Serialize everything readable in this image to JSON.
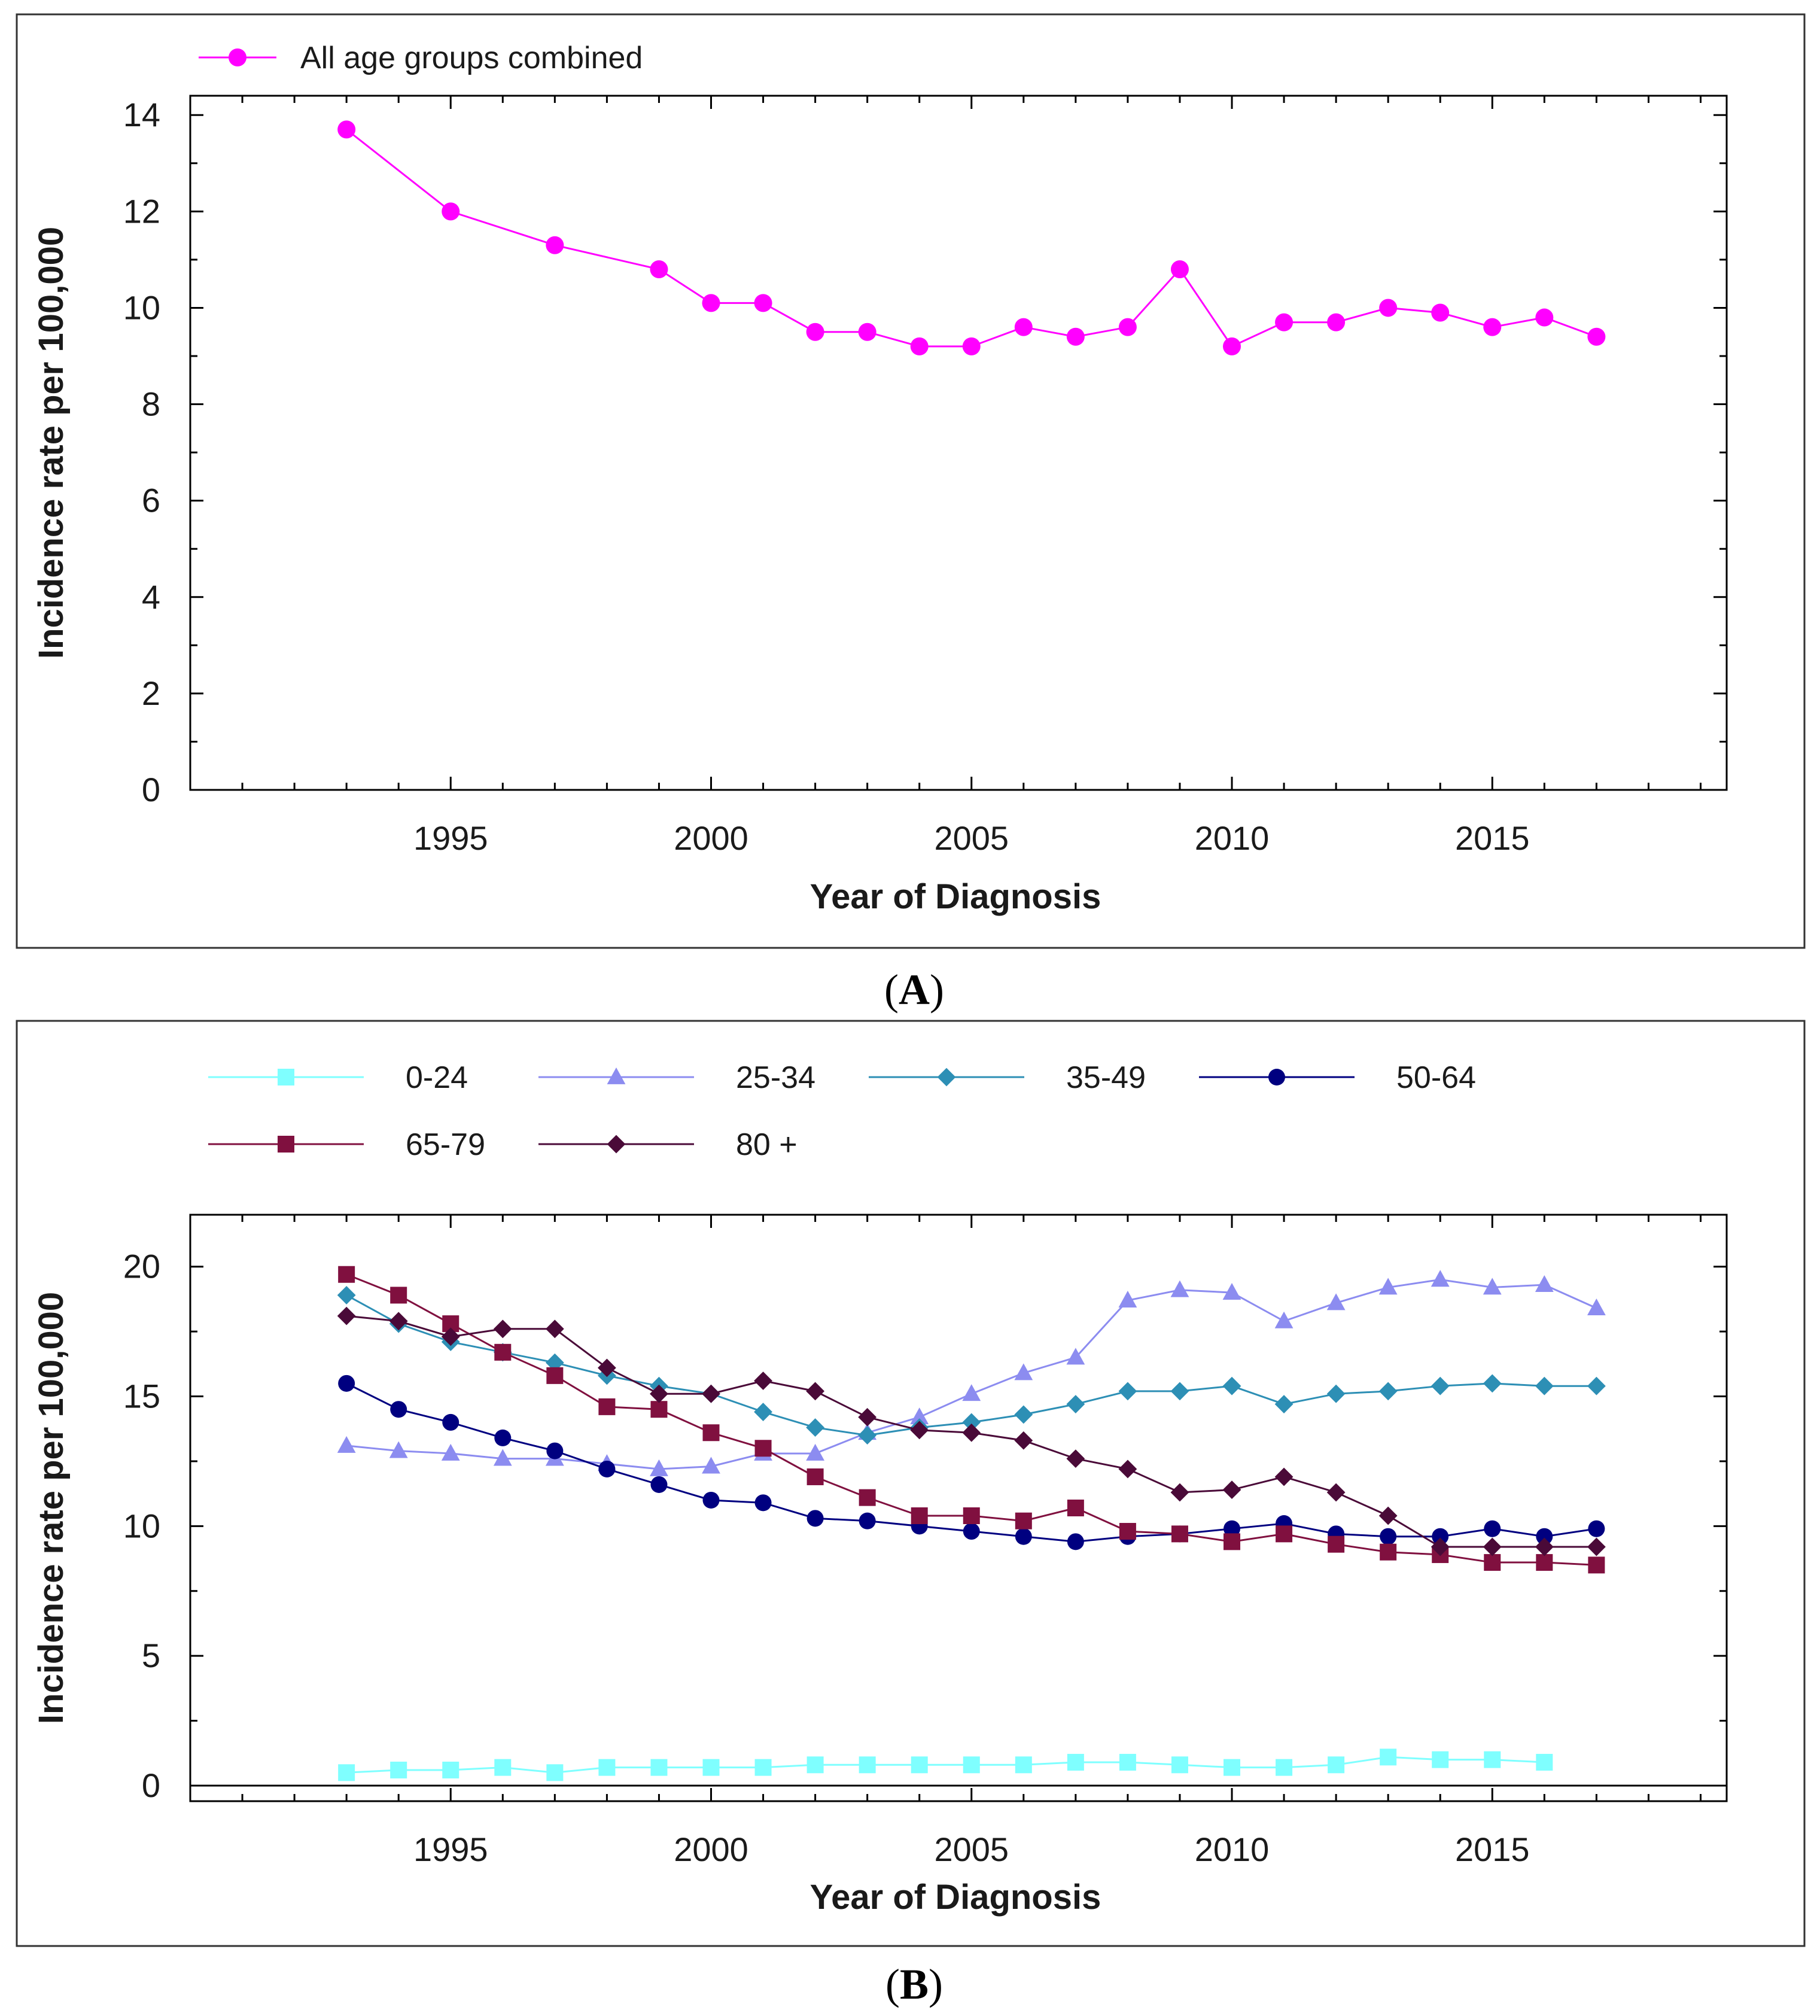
{
  "colors": {
    "frame": "#333333",
    "axis": "#000000",
    "text": "#1a1a1a"
  },
  "chart_data": [
    {
      "panel_label": "A",
      "type": "line",
      "title": "",
      "xlabel": "Year of Diagnosis",
      "ylabel": "Incidence rate per 100,000",
      "xlim": [
        1990,
        2019.5
      ],
      "ylim": [
        0,
        14.4
      ],
      "xticks": [
        1995,
        2000,
        2005,
        2010,
        2015
      ],
      "yticks": [
        0,
        2,
        4,
        6,
        8,
        10,
        12,
        14
      ],
      "legend_position": "top-left",
      "series": [
        {
          "name": "All age groups combined",
          "color": "#ff00ff",
          "marker": "circle",
          "x": [
            1993,
            1995,
            1997,
            1999,
            2000,
            2001,
            2002,
            2003,
            2004,
            2005,
            2006,
            2007,
            2008,
            2009,
            2010,
            2011,
            2012,
            2013,
            2014,
            2015,
            2016,
            2017
          ],
          "y": [
            13.7,
            12.0,
            11.3,
            10.8,
            10.1,
            10.1,
            9.5,
            9.5,
            9.2,
            9.2,
            9.6,
            9.4,
            9.6,
            10.8,
            9.2,
            9.7,
            9.7,
            10.0,
            9.9,
            9.6,
            9.8,
            9.4
          ]
        }
      ]
    },
    {
      "panel_label": "B",
      "type": "line",
      "title": "",
      "xlabel": "Year of Diagnosis",
      "ylabel": "Incidence rate per 100,000",
      "xlim": [
        1990,
        2019.5
      ],
      "ylim": [
        -0.6,
        22
      ],
      "xticks": [
        1995,
        2000,
        2005,
        2010,
        2015
      ],
      "yticks": [
        0,
        5,
        10,
        15,
        20
      ],
      "legend_position": "top",
      "series": [
        {
          "name": "0-24",
          "color": "#7fffff",
          "marker": "square",
          "x": [
            1993,
            1994,
            1995,
            1996,
            1997,
            1998,
            1999,
            2000,
            2001,
            2002,
            2003,
            2004,
            2005,
            2006,
            2007,
            2008,
            2009,
            2010,
            2011,
            2012,
            2013,
            2014,
            2015,
            2016
          ],
          "y": [
            0.5,
            0.6,
            0.6,
            0.7,
            0.5,
            0.7,
            0.7,
            0.7,
            0.7,
            0.8,
            0.8,
            0.8,
            0.8,
            0.8,
            0.9,
            0.9,
            0.8,
            0.7,
            0.7,
            0.8,
            1.1,
            1.0,
            1.0,
            0.9
          ]
        },
        {
          "name": "25-34",
          "color": "#8c8cf0",
          "marker": "triangle",
          "x": [
            1993,
            1994,
            1995,
            1996,
            1997,
            1998,
            1999,
            2000,
            2001,
            2002,
            2003,
            2004,
            2005,
            2006,
            2007,
            2008,
            2009,
            2010,
            2011,
            2012,
            2013,
            2014,
            2015,
            2016,
            2017
          ],
          "y": [
            13.1,
            12.9,
            12.8,
            12.6,
            12.6,
            12.4,
            12.2,
            12.3,
            12.8,
            12.8,
            13.6,
            14.2,
            15.1,
            15.9,
            16.5,
            18.7,
            19.1,
            19.0,
            17.9,
            18.6,
            19.2,
            19.5,
            19.2,
            19.3,
            18.4
          ]
        },
        {
          "name": "35-49",
          "color": "#2d8fb5",
          "marker": "diamond",
          "x": [
            1993,
            1994,
            1995,
            1996,
            1997,
            1998,
            1999,
            2000,
            2001,
            2002,
            2003,
            2004,
            2005,
            2006,
            2007,
            2008,
            2009,
            2010,
            2011,
            2012,
            2013,
            2014,
            2015,
            2016,
            2017
          ],
          "y": [
            18.9,
            17.8,
            17.1,
            16.7,
            16.3,
            15.8,
            15.4,
            15.1,
            14.4,
            13.8,
            13.5,
            13.8,
            14.0,
            14.3,
            14.7,
            15.2,
            15.2,
            15.4,
            14.7,
            15.1,
            15.2,
            15.4,
            15.5,
            15.4,
            15.4
          ]
        },
        {
          "name": "50-64",
          "color": "#000080",
          "marker": "circle",
          "x": [
            1993,
            1994,
            1995,
            1996,
            1997,
            1998,
            1999,
            2000,
            2001,
            2002,
            2003,
            2004,
            2005,
            2006,
            2007,
            2008,
            2009,
            2010,
            2011,
            2012,
            2013,
            2014,
            2015,
            2016,
            2017
          ],
          "y": [
            15.5,
            14.5,
            14.0,
            13.4,
            12.9,
            12.2,
            11.6,
            11.0,
            10.9,
            10.3,
            10.2,
            10.0,
            9.8,
            9.6,
            9.4,
            9.6,
            9.7,
            9.9,
            10.1,
            9.7,
            9.6,
            9.6,
            9.9,
            9.6,
            9.9
          ]
        },
        {
          "name": "65-79",
          "color": "#80103f",
          "marker": "square",
          "x": [
            1993,
            1994,
            1995,
            1996,
            1997,
            1998,
            1999,
            2000,
            2001,
            2002,
            2003,
            2004,
            2005,
            2006,
            2007,
            2008,
            2009,
            2010,
            2011,
            2012,
            2013,
            2014,
            2015,
            2016,
            2017
          ],
          "y": [
            19.7,
            18.9,
            17.8,
            16.7,
            15.8,
            14.6,
            14.5,
            13.6,
            13.0,
            11.9,
            11.1,
            10.4,
            10.4,
            10.2,
            10.7,
            9.8,
            9.7,
            9.4,
            9.7,
            9.3,
            9.0,
            8.9,
            8.6,
            8.6,
            8.5
          ]
        },
        {
          "name": "80 +",
          "color": "#4a0a38",
          "marker": "diamond",
          "x": [
            1993,
            1994,
            1995,
            1996,
            1997,
            1998,
            1999,
            2000,
            2001,
            2002,
            2003,
            2004,
            2005,
            2006,
            2007,
            2008,
            2009,
            2010,
            2011,
            2012,
            2013,
            2014,
            2015,
            2016,
            2017
          ],
          "y": [
            18.1,
            17.9,
            17.3,
            17.6,
            17.6,
            16.1,
            15.1,
            15.1,
            15.6,
            15.2,
            14.2,
            13.7,
            13.6,
            13.3,
            12.6,
            12.2,
            11.3,
            11.4,
            11.9,
            11.3,
            10.4,
            9.2,
            9.2,
            9.2,
            9.2
          ]
        }
      ]
    }
  ]
}
